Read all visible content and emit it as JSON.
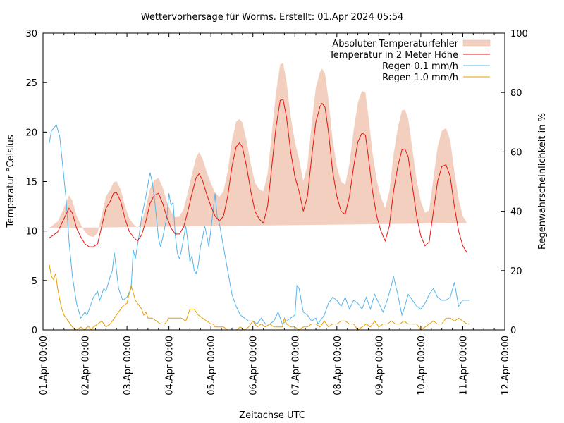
{
  "chart_data": {
    "type": "line",
    "title": "Wettervorhersage für Worms. Erstellt: 01.Apr 2024 05:54",
    "xlabel": "Zeitachse UTC",
    "ylabel": "Temperatur °Celsius",
    "y2label": "Regenwahrscheinlichkeit in %",
    "xlim_days": [
      0,
      11
    ],
    "ylim": [
      0,
      30
    ],
    "y2lim": [
      0,
      100
    ],
    "x_ticks": [
      "01.Apr 00:00",
      "02.Apr 00:00",
      "03.Apr 00:00",
      "04.Apr 00:00",
      "05.Apr 00:00",
      "06.Apr 00:00",
      "07.Apr 00:00",
      "08.Apr 00:00",
      "09.Apr 00:00",
      "10.Apr 00:00",
      "11.Apr 00:00",
      "12.Apr 00:00"
    ],
    "y_ticks": [
      0,
      5,
      10,
      15,
      20,
      25,
      30
    ],
    "y2_ticks": [
      0,
      20,
      40,
      60,
      80,
      100
    ],
    "legend_position": "top-right",
    "legend": [
      {
        "label": "Absoluter Temperaturfehler",
        "kind": "band",
        "color": "#f2cfbf"
      },
      {
        "label": "Temperatur in 2 Meter Höhe",
        "kind": "line",
        "color": "#e8120c"
      },
      {
        "label": "Regen 0.1 mm/h",
        "kind": "line",
        "color": "#56b4e9"
      },
      {
        "label": "Regen 1.0 mm/h",
        "kind": "line",
        "color": "#e69f00"
      }
    ],
    "series": [
      {
        "name": "Temperatur in 2 Meter Höhe",
        "axis": "left",
        "x_days": [
          0.15,
          0.25,
          0.35,
          0.45,
          0.55,
          0.62,
          0.7,
          0.8,
          0.9,
          1.0,
          1.1,
          1.2,
          1.3,
          1.4,
          1.5,
          1.6,
          1.68,
          1.75,
          1.85,
          1.95,
          2.05,
          2.15,
          2.25,
          2.35,
          2.45,
          2.55,
          2.65,
          2.75,
          2.85,
          2.95,
          3.05,
          3.15,
          3.25,
          3.35,
          3.45,
          3.55,
          3.65,
          3.72,
          3.8,
          3.9,
          4.0,
          4.1,
          4.2,
          4.3,
          4.4,
          4.5,
          4.6,
          4.68,
          4.75,
          4.85,
          4.95,
          5.05,
          5.15,
          5.25,
          5.35,
          5.45,
          5.55,
          5.65,
          5.72,
          5.8,
          5.9,
          6.0,
          6.1,
          6.2,
          6.3,
          6.4,
          6.5,
          6.6,
          6.65,
          6.72,
          6.8,
          6.9,
          7.0,
          7.1,
          7.2,
          7.3,
          7.4,
          7.5,
          7.6,
          7.68,
          7.75,
          7.85,
          7.95,
          8.05,
          8.15,
          8.25,
          8.35,
          8.45,
          8.55,
          8.62,
          8.7,
          8.8,
          8.9,
          9.0,
          9.1,
          9.2,
          9.3,
          9.4,
          9.5,
          9.6,
          9.7,
          9.8,
          9.9,
          10.0,
          10.1,
          10.15
        ],
        "values": [
          9.3,
          9.6,
          9.9,
          10.8,
          11.7,
          12.3,
          11.8,
          10.3,
          9.4,
          8.7,
          8.4,
          8.4,
          8.7,
          10.5,
          12.3,
          13.0,
          13.8,
          13.9,
          13.0,
          11.3,
          10.0,
          9.4,
          9.0,
          9.6,
          11.0,
          12.8,
          13.6,
          13.8,
          12.8,
          11.4,
          10.3,
          9.7,
          9.7,
          10.4,
          12.0,
          13.8,
          15.4,
          15.8,
          15.1,
          13.7,
          12.5,
          11.5,
          11.0,
          11.5,
          13.5,
          16.5,
          18.5,
          18.9,
          18.5,
          16.5,
          14.0,
          12.0,
          11.2,
          10.8,
          12.5,
          16.5,
          20.5,
          23.2,
          23.3,
          21.5,
          18.0,
          15.5,
          14.0,
          12.0,
          13.5,
          17.5,
          21.0,
          22.6,
          22.9,
          22.5,
          20.0,
          16.0,
          13.5,
          12.0,
          11.7,
          13.5,
          16.5,
          19.0,
          19.9,
          19.7,
          17.5,
          14.0,
          11.5,
          10.0,
          9.0,
          10.5,
          14.0,
          16.5,
          18.2,
          18.3,
          17.5,
          14.5,
          11.5,
          9.5,
          8.5,
          8.9,
          12.0,
          15.0,
          16.5,
          16.7,
          15.5,
          12.5,
          10.0,
          8.5,
          7.8
        ]
      },
      {
        "name": "Absoluter Temperaturfehler",
        "axis": "left",
        "note": "band half-width (°C) around the temperature line",
        "x_days": [
          0.15,
          0.5,
          0.62,
          1.0,
          1.2,
          1.5,
          1.7,
          2.0,
          2.3,
          2.6,
          2.8,
          3.0,
          3.3,
          3.6,
          3.75,
          4.0,
          4.25,
          4.55,
          4.7,
          5.0,
          5.25,
          5.55,
          5.7,
          6.0,
          6.2,
          6.5,
          6.65,
          7.0,
          7.2,
          7.5,
          7.65,
          8.0,
          8.15,
          8.5,
          8.6,
          9.0,
          9.2,
          9.55,
          9.7,
          10.0,
          10.15
        ],
        "values": [
          1.0,
          1.1,
          1.3,
          1.2,
          1.0,
          1.2,
          1.1,
          1.3,
          1.3,
          1.5,
          1.6,
          1.6,
          1.8,
          2.0,
          2.2,
          2.3,
          2.5,
          2.6,
          2.4,
          2.8,
          3.2,
          3.5,
          3.7,
          3.5,
          3.0,
          3.5,
          3.5,
          3.0,
          3.0,
          4.0,
          4.4,
          3.5,
          3.3,
          4.0,
          4.0,
          3.5,
          3.2,
          3.7,
          3.7,
          3.0,
          3.0
        ]
      },
      {
        "name": "Regen 0.1 mm/h",
        "axis": "right",
        "x_days": [
          0.15,
          0.2,
          0.25,
          0.32,
          0.4,
          0.45,
          0.55,
          0.62,
          0.7,
          0.8,
          0.9,
          1.0,
          1.05,
          1.1,
          1.2,
          1.3,
          1.35,
          1.45,
          1.5,
          1.6,
          1.65,
          1.7,
          1.75,
          1.8,
          1.9,
          2.0,
          2.1,
          2.15,
          2.2,
          2.3,
          2.35,
          2.45,
          2.55,
          2.6,
          2.65,
          2.75,
          2.8,
          2.85,
          2.95,
          3.0,
          3.05,
          3.1,
          3.15,
          3.2,
          3.25,
          3.3,
          3.4,
          3.45,
          3.5,
          3.55,
          3.6,
          3.65,
          3.7,
          3.75,
          3.8,
          3.85,
          3.9,
          3.95,
          4.0,
          4.05,
          4.1,
          4.15,
          4.2,
          4.3,
          4.4,
          4.5,
          4.6,
          4.7,
          4.8,
          4.9,
          5.0,
          5.1,
          5.2,
          5.3,
          5.4,
          5.5,
          5.6,
          5.7,
          5.8,
          5.9,
          6.0,
          6.05,
          6.1,
          6.2,
          6.3,
          6.4,
          6.5,
          6.55,
          6.6,
          6.7,
          6.8,
          6.9,
          7.0,
          7.1,
          7.2,
          7.3,
          7.4,
          7.5,
          7.6,
          7.7,
          7.8,
          7.9,
          8.0,
          8.1,
          8.2,
          8.3,
          8.35,
          8.45,
          8.55,
          8.6,
          8.7,
          8.8,
          8.9,
          9.0,
          9.1,
          9.2,
          9.3,
          9.4,
          9.5,
          9.6,
          9.7,
          9.8,
          9.9,
          10.0,
          10.1,
          10.15
        ],
        "values": [
          63,
          67,
          68,
          69,
          65,
          58,
          44,
          30,
          18,
          9,
          4,
          6,
          5,
          7,
          11,
          13,
          10,
          14,
          13,
          18,
          20,
          26,
          20,
          14,
          10,
          11,
          14,
          27,
          24,
          33,
          38,
          45,
          53,
          50,
          45,
          31,
          28,
          31,
          38,
          46,
          42,
          43,
          32,
          26,
          24,
          27,
          35,
          30,
          23,
          25,
          20,
          19,
          22,
          28,
          31,
          35,
          32,
          28,
          34,
          40,
          46,
          38,
          36,
          28,
          20,
          12,
          8,
          5,
          4,
          3,
          3,
          2,
          4,
          2,
          2,
          3,
          6,
          2,
          3,
          4,
          5,
          15,
          14,
          6,
          5,
          3,
          4,
          2,
          3,
          5,
          9,
          11,
          10,
          8,
          11,
          7,
          10,
          9,
          7,
          11,
          7,
          12,
          9,
          6,
          10,
          15,
          18,
          12,
          5,
          7,
          12,
          10,
          8,
          7,
          9,
          12,
          14,
          11,
          10,
          10,
          11,
          16,
          8,
          10,
          10,
          10
        ]
      },
      {
        "name": "Regen 1.0 mm/h",
        "axis": "right",
        "x_days": [
          0.15,
          0.2,
          0.25,
          0.3,
          0.35,
          0.4,
          0.45,
          0.5,
          0.55,
          0.6,
          0.7,
          0.8,
          0.9,
          1.0,
          1.05,
          1.1,
          1.15,
          1.2,
          1.3,
          1.4,
          1.5,
          1.6,
          1.7,
          1.8,
          1.9,
          2.0,
          2.1,
          2.2,
          2.3,
          2.35,
          2.4,
          2.45,
          2.5,
          2.55,
          2.6,
          2.7,
          2.8,
          2.9,
          3.0,
          3.1,
          3.2,
          3.3,
          3.4,
          3.5,
          3.6,
          3.7,
          3.8,
          3.9,
          4.0,
          4.05,
          4.1,
          4.2,
          4.3,
          4.4,
          4.5,
          4.6,
          4.7,
          4.8,
          4.9,
          5.0,
          5.1,
          5.2,
          5.3,
          5.4,
          5.5,
          5.6,
          5.7,
          5.75,
          5.8,
          5.9,
          6.0,
          6.1,
          6.2,
          6.3,
          6.4,
          6.5,
          6.6,
          6.7,
          6.8,
          6.9,
          7.0,
          7.1,
          7.2,
          7.3,
          7.4,
          7.5,
          7.6,
          7.7,
          7.8,
          7.9,
          8.0,
          8.1,
          8.2,
          8.3,
          8.4,
          8.5,
          8.6,
          8.7,
          8.8,
          8.9,
          9.0,
          9.1,
          9.2,
          9.3,
          9.4,
          9.5,
          9.6,
          9.7,
          9.8,
          9.9,
          10.0,
          10.1,
          10.15
        ],
        "values": [
          22,
          18,
          17,
          19,
          14,
          10,
          7,
          5,
          4,
          3,
          1,
          0,
          1,
          0,
          1,
          1,
          0,
          1,
          2,
          3,
          1,
          2,
          4,
          6,
          8,
          9,
          15,
          10,
          8,
          7,
          5,
          6,
          4,
          4,
          4,
          3,
          2,
          2,
          4,
          4,
          4,
          4,
          3,
          7,
          7,
          5,
          4,
          3,
          2,
          2,
          1,
          1,
          1,
          0,
          0,
          0,
          1,
          0,
          1,
          3,
          1,
          2,
          1,
          2,
          1,
          1,
          1,
          4,
          2,
          1,
          1,
          0,
          1,
          1,
          2,
          2,
          1,
          3,
          1,
          2,
          2,
          3,
          3,
          2,
          2,
          0,
          1,
          2,
          1,
          3,
          1,
          2,
          2,
          3,
          2,
          2,
          3,
          2,
          2,
          2,
          0,
          1,
          2,
          3,
          2,
          2,
          4,
          4,
          3,
          4,
          3,
          2,
          2
        ]
      }
    ]
  }
}
